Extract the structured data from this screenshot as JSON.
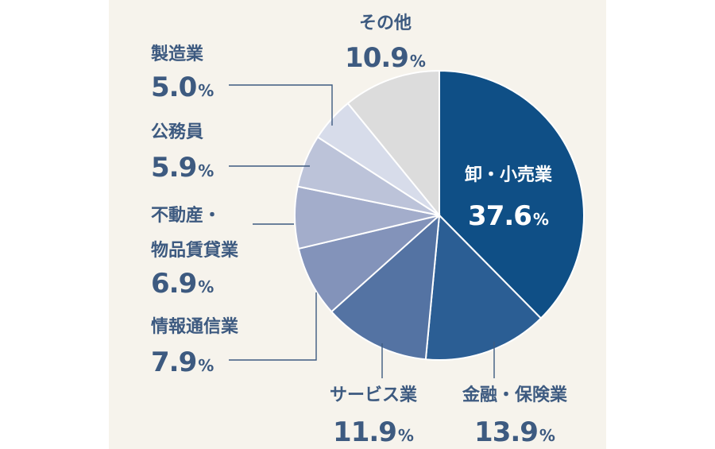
{
  "chart_data": {
    "type": "pie",
    "title": "",
    "unit": "%",
    "slices": [
      {
        "id": "retail",
        "lines": [
          "卸・小売業"
        ],
        "value": 37.6,
        "display": "37.6",
        "color": "#0f4f86"
      },
      {
        "id": "finance",
        "lines": [
          "金融・保険業"
        ],
        "value": 13.9,
        "display": "13.9",
        "color": "#2b5e94"
      },
      {
        "id": "service",
        "lines": [
          "サービス業"
        ],
        "value": 11.9,
        "display": "11.9",
        "color": "#5473a3"
      },
      {
        "id": "it",
        "lines": [
          "情報通信業"
        ],
        "value": 7.9,
        "display": "7.9",
        "color": "#8393ba"
      },
      {
        "id": "realestate",
        "lines": [
          "不動産・",
          "物品賃貸業"
        ],
        "value": 6.9,
        "display": "6.9",
        "color": "#a3adcb"
      },
      {
        "id": "public",
        "lines": [
          "公務員"
        ],
        "value": 5.9,
        "display": "5.9",
        "color": "#bcc3d9"
      },
      {
        "id": "manufacture",
        "lines": [
          "製造業"
        ],
        "value": 5.0,
        "display": "5.0",
        "color": "#d7dcea"
      },
      {
        "id": "other",
        "lines": [
          "その他"
        ],
        "value": 10.9,
        "display": "10.9",
        "color": "#dcdcdc"
      }
    ]
  }
}
